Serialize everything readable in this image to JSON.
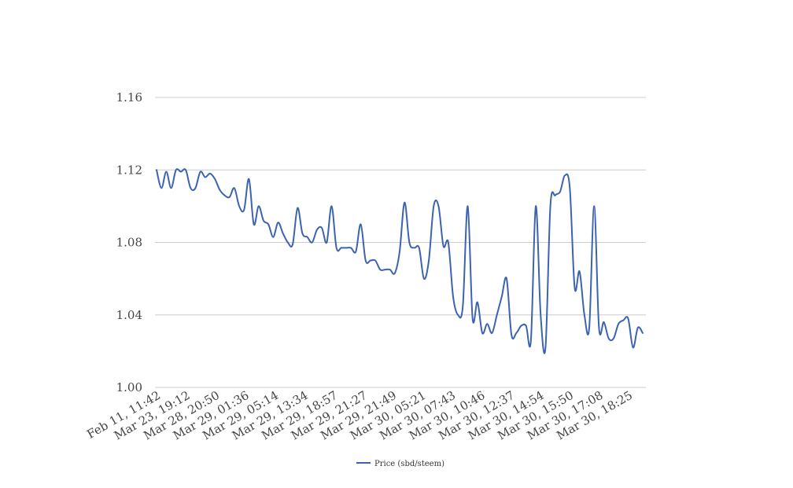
{
  "chart_data": {
    "type": "line",
    "title": "",
    "xlabel": "",
    "ylabel": "",
    "ylim": [
      1.0,
      1.16
    ],
    "yticks": [
      "1.00",
      "1.04",
      "1.08",
      "1.12",
      "1.16"
    ],
    "grid": true,
    "legend_position": "bottom",
    "x_tick_labels": [
      "Feb 11, 11:42",
      "Mar 23, 19:12",
      "Mar 28, 20:50",
      "Mar 29, 01:36",
      "Mar 29, 05:14",
      "Mar 29, 13:34",
      "Mar 29, 18:57",
      "Mar 29, 21:27",
      "Mar 29, 21:49",
      "Mar 30, 05:21",
      "Mar 30, 07:43",
      "Mar 30, 10:46",
      "Mar 30, 12:37",
      "Mar 30, 14:54",
      "Mar 30, 15:50",
      "Mar 30, 17:08",
      "Mar 30, 18:25"
    ],
    "series": [
      {
        "name": "Price (sbd/steem)",
        "color": "#3c63b0",
        "values": [
          1.12,
          1.11,
          1.119,
          1.11,
          1.12,
          1.119,
          1.12,
          1.11,
          1.11,
          1.119,
          1.116,
          1.118,
          1.115,
          1.109,
          1.106,
          1.105,
          1.11,
          1.1,
          1.098,
          1.115,
          1.09,
          1.1,
          1.092,
          1.09,
          1.083,
          1.091,
          1.085,
          1.08,
          1.079,
          1.099,
          1.085,
          1.083,
          1.08,
          1.087,
          1.088,
          1.08,
          1.1,
          1.077,
          1.077,
          1.077,
          1.077,
          1.075,
          1.09,
          1.07,
          1.07,
          1.07,
          1.065,
          1.065,
          1.065,
          1.063,
          1.075,
          1.102,
          1.08,
          1.077,
          1.077,
          1.06,
          1.07,
          1.1,
          1.1,
          1.078,
          1.08,
          1.05,
          1.04,
          1.045,
          1.1,
          1.038,
          1.047,
          1.03,
          1.035,
          1.03,
          1.04,
          1.05,
          1.06,
          1.029,
          1.03,
          1.034,
          1.034,
          1.026,
          1.1,
          1.04,
          1.022,
          1.1,
          1.106,
          1.108,
          1.117,
          1.11,
          1.055,
          1.064,
          1.04,
          1.033,
          1.1,
          1.033,
          1.036,
          1.027,
          1.027,
          1.035,
          1.037,
          1.038,
          1.022,
          1.033,
          1.03
        ]
      }
    ]
  }
}
